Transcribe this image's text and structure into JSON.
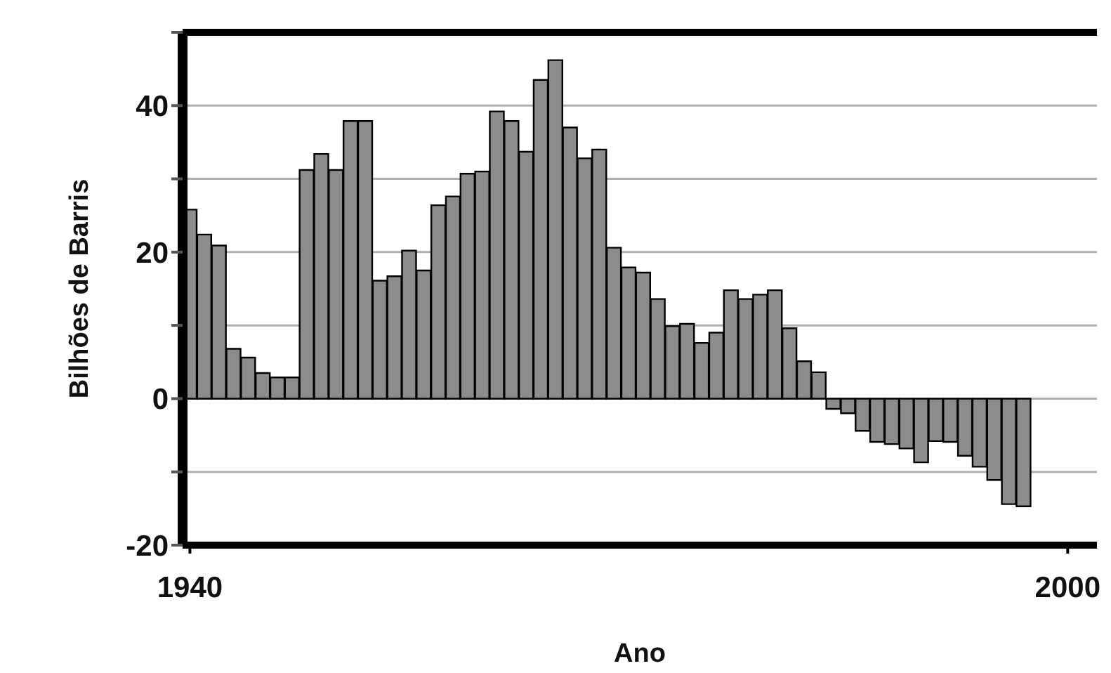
{
  "chart_data": {
    "type": "bar",
    "xlabel": "Ano",
    "ylabel": "Bilhões de Barris",
    "x": [
      1940,
      1941,
      1942,
      1943,
      1944,
      1945,
      1946,
      1947,
      1948,
      1949,
      1950,
      1951,
      1952,
      1953,
      1954,
      1955,
      1956,
      1957,
      1958,
      1959,
      1960,
      1961,
      1962,
      1963,
      1964,
      1965,
      1966,
      1967,
      1968,
      1969,
      1970,
      1971,
      1972,
      1973,
      1974,
      1975,
      1976,
      1977,
      1978,
      1979,
      1980,
      1981,
      1982,
      1983,
      1984,
      1985,
      1986,
      1987,
      1988,
      1989,
      1990,
      1991,
      1992,
      1993,
      1994,
      1995,
      1996,
      1997
    ],
    "values": [
      25.8,
      22.4,
      20.9,
      6.8,
      5.6,
      3.5,
      2.9,
      2.9,
      31.2,
      33.4,
      31.2,
      37.9,
      37.9,
      16.1,
      16.7,
      20.2,
      17.5,
      26.4,
      27.6,
      30.7,
      31.0,
      39.2,
      37.9,
      33.7,
      43.5,
      46.2,
      37.0,
      32.8,
      34.0,
      20.6,
      17.9,
      17.2,
      13.6,
      9.9,
      10.2,
      7.6,
      9.0,
      14.8,
      13.6,
      14.2,
      14.8,
      9.6,
      5.1,
      3.6,
      -1.4,
      -2.0,
      -4.4,
      -5.9,
      -6.2,
      -6.8,
      -8.7,
      -5.8,
      -5.9,
      -7.8,
      -9.3,
      -11.1,
      -14.4,
      -14.7
    ],
    "color": "#8c8c8c",
    "xlim": [
      1939.5,
      2002
    ],
    "xticks": [
      1940,
      2000
    ],
    "ylim": [
      -20,
      50
    ],
    "yticks": [
      -20,
      {
        "value": -10,
        "label": null
      },
      0,
      {
        "value": 10,
        "label": null
      },
      20,
      {
        "value": 30,
        "label": null
      },
      40,
      {
        "value": 50,
        "label": null
      }
    ],
    "grid": "y"
  }
}
